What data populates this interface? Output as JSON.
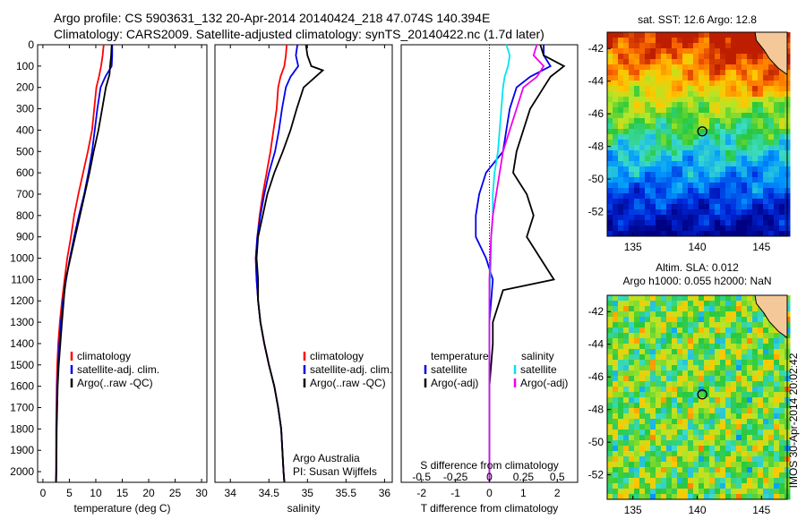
{
  "header": {
    "line1": "Argo profile: CS 5903631_132 20-Apr-2014 20140424_218 47.074S 140.394E",
    "line2": "Climatology: CARS2009. Satellite-adjusted climatology: synTS_20140422.nc (1.7d later)"
  },
  "credit": {
    "org": "Argo Australia",
    "pi": "PI: Susan Wijffels"
  },
  "side_label": "IMOS 30-Apr-2014 20:02:42",
  "colors": {
    "clim": "#ff0000",
    "sat": "#0000ee",
    "argo": "#000000",
    "sal_sat": "#00e5ee",
    "sal_argo": "#ee00ee"
  },
  "chart_data": [
    {
      "type": "line",
      "xlabel": "temperature (deg C)",
      "xlim": [
        -1,
        31
      ],
      "xticks": [
        0,
        5,
        10,
        15,
        20,
        25,
        30
      ],
      "ylim": [
        0,
        2050
      ],
      "yticks": [
        0,
        100,
        200,
        300,
        400,
        500,
        600,
        700,
        800,
        900,
        1000,
        1100,
        1200,
        1300,
        1400,
        1500,
        1600,
        1700,
        1800,
        1900,
        2000
      ],
      "legend": [
        "climatology",
        "satellite-adj. clim.",
        "Argo(..raw -QC)"
      ],
      "series": [
        {
          "key": "clim",
          "x": [
            11.5,
            11.3,
            11,
            10.6,
            10.1,
            9.7,
            9.3,
            8.5,
            7.6,
            6.7,
            5.9,
            5.3,
            4.6,
            4.1,
            3.6,
            3.2,
            2.9,
            2.7,
            2.6,
            2.5,
            2.5,
            2.45
          ],
          "y": [
            0,
            50,
            100,
            150,
            200,
            300,
            400,
            500,
            600,
            700,
            800,
            900,
            1000,
            1100,
            1200,
            1300,
            1400,
            1500,
            1600,
            1800,
            2000,
            2050
          ]
        },
        {
          "key": "sat",
          "x": [
            13.1,
            13.1,
            13,
            11.8,
            10.9,
            10.3,
            9.8,
            9.3,
            8.6,
            7.8,
            6.8,
            5.9,
            5.1,
            4.4,
            3.8,
            3.4,
            3.1,
            2.9,
            2.7,
            2.55,
            2.5,
            2.45
          ],
          "y": [
            0,
            50,
            100,
            150,
            200,
            300,
            400,
            500,
            600,
            700,
            800,
            900,
            1000,
            1100,
            1200,
            1300,
            1400,
            1500,
            1600,
            1800,
            2000,
            2050
          ]
        },
        {
          "key": "argo",
          "x": [
            13,
            12.9,
            12.7,
            12.6,
            11.9,
            11.2,
            10.5,
            9.6,
            8.8,
            7.9,
            7,
            6.1,
            5.2,
            4.3,
            4.1,
            3.6,
            3.3,
            3,
            2.8,
            2.6,
            2.55,
            2.5
          ],
          "y": [
            0,
            50,
            100,
            140,
            200,
            300,
            400,
            500,
            600,
            700,
            800,
            900,
            1000,
            1100,
            1150,
            1300,
            1400,
            1500,
            1600,
            1800,
            2000,
            2050
          ]
        }
      ]
    },
    {
      "type": "line",
      "xlabel": "salinity",
      "xlim": [
        33.8,
        36.1
      ],
      "xticks": [
        34,
        34.5,
        35,
        35.5,
        36
      ],
      "ylim": [
        0,
        2050
      ],
      "legend": [
        "climatology",
        "satellite-adj. clim.",
        "Argo(..raw -QC)"
      ],
      "series": [
        {
          "key": "clim",
          "x": [
            34.73,
            34.72,
            34.7,
            34.65,
            34.62,
            34.6,
            34.56,
            34.52,
            34.47,
            34.42,
            34.38,
            34.35,
            34.33,
            34.34,
            34.36,
            34.39,
            34.44,
            34.5,
            34.57,
            34.62,
            34.66,
            34.69,
            34.7
          ],
          "y": [
            0,
            50,
            100,
            150,
            200,
            300,
            400,
            500,
            600,
            700,
            800,
            900,
            1000,
            1100,
            1200,
            1300,
            1400,
            1500,
            1600,
            1700,
            1800,
            2000,
            2050
          ]
        },
        {
          "key": "sat",
          "x": [
            34.87,
            34.85,
            34.88,
            34.78,
            34.72,
            34.67,
            34.63,
            34.58,
            34.5,
            34.44,
            34.39,
            34.35,
            34.33,
            34.34,
            34.36,
            34.39,
            34.44,
            34.5,
            34.57,
            34.62,
            34.66,
            34.69,
            34.7
          ],
          "y": [
            0,
            50,
            100,
            150,
            200,
            300,
            400,
            500,
            600,
            700,
            800,
            900,
            1000,
            1100,
            1200,
            1300,
            1400,
            1500,
            1600,
            1700,
            1800,
            2000,
            2050
          ]
        },
        {
          "key": "argo",
          "x": [
            34.98,
            35.0,
            35.05,
            35.2,
            34.95,
            34.86,
            34.78,
            34.68,
            34.57,
            34.48,
            34.42,
            34.36,
            34.34,
            34.36,
            34.36,
            34.39,
            34.44,
            34.5,
            34.57,
            34.62,
            34.66,
            34.69,
            34.7
          ],
          "y": [
            0,
            50,
            100,
            120,
            200,
            300,
            400,
            500,
            600,
            700,
            800,
            900,
            1000,
            1100,
            1200,
            1300,
            1400,
            1500,
            1600,
            1700,
            1800,
            2000,
            2050
          ]
        }
      ]
    },
    {
      "type": "line",
      "xlabel": "T difference from climatology",
      "xlabel_top": "S difference from climatology",
      "xlim": [
        -2.6,
        2.6
      ],
      "xticks": [
        -2,
        -1,
        0,
        1,
        2
      ],
      "xticks_top": [
        "-0.5",
        "-0.25",
        "0",
        "0.25",
        "0.5"
      ],
      "ylim": [
        0,
        2050
      ],
      "legend_left": {
        "title": "temperature",
        "items": [
          "satellite",
          "Argo(-adj)"
        ]
      },
      "legend_right": {
        "title": "salinity",
        "items": [
          "satellite",
          "Argo(-adj)"
        ]
      },
      "series": [
        {
          "key": "sat",
          "x": [
            1.6,
            1.6,
            1.8,
            1.2,
            0.8,
            0.6,
            0.5,
            0.4,
            -0.1,
            -0.3,
            -0.4,
            -0.4,
            -0.1,
            0.1,
            0.05,
            0,
            0,
            0,
            0,
            0,
            0,
            0
          ],
          "y": [
            0,
            50,
            100,
            150,
            200,
            300,
            400,
            500,
            600,
            700,
            800,
            900,
            1000,
            1100,
            1200,
            1300,
            1400,
            1500,
            1600,
            1800,
            2000,
            2050
          ]
        },
        {
          "key": "argo",
          "x": [
            1.5,
            1.6,
            2.2,
            1.8,
            1.6,
            1.2,
            1,
            0.8,
            0.7,
            1.1,
            1.3,
            1.1,
            1.5,
            1.9,
            0.4,
            0.1,
            0.1,
            0.05,
            0,
            0,
            0,
            0
          ],
          "y": [
            0,
            50,
            100,
            150,
            200,
            300,
            400,
            500,
            600,
            700,
            800,
            900,
            1000,
            1100,
            1150,
            1300,
            1400,
            1500,
            1600,
            1800,
            2000,
            2050
          ]
        },
        {
          "key": "sal_sat",
          "x": [
            0.5,
            0.6,
            0.55,
            0.45,
            0.4,
            0.35,
            0.3,
            0.25,
            0.15,
            0.1,
            0.1,
            0.05,
            0.05,
            0.02,
            0,
            0,
            0,
            0,
            0,
            0,
            0,
            0
          ],
          "y": [
            0,
            50,
            100,
            150,
            200,
            300,
            400,
            500,
            600,
            700,
            800,
            900,
            1000,
            1100,
            1200,
            1300,
            1400,
            1500,
            1600,
            1700,
            2000,
            2050
          ]
        },
        {
          "key": "sal_argo",
          "x": [
            1.4,
            1.3,
            1.6,
            1.4,
            1,
            0.8,
            0.6,
            0.4,
            0.3,
            0.2,
            0.1,
            0.05,
            0.02,
            0,
            0,
            0,
            0,
            0,
            0,
            0,
            0,
            0
          ],
          "y": [
            0,
            50,
            100,
            150,
            200,
            300,
            400,
            500,
            600,
            700,
            800,
            900,
            1000,
            1100,
            1200,
            1300,
            1400,
            1500,
            1600,
            1700,
            2000,
            2050
          ]
        }
      ]
    },
    {
      "type": "heatmap",
      "title": "sat. SST: 12.6 Argo: 12.8",
      "xlim": [
        133,
        147
      ],
      "ylim": [
        -53.5,
        -41
      ],
      "xticks": [
        135,
        140,
        145
      ],
      "yticks": [
        -42,
        -44,
        -46,
        -48,
        -50,
        -52
      ],
      "marker": {
        "x": 140.394,
        "y": -47.074
      }
    },
    {
      "type": "heatmap",
      "title_line1": "Altim. SLA: 0.012",
      "title_line2": "Argo h1000: 0.055 h2000: NaN",
      "xlim": [
        133,
        147
      ],
      "ylim": [
        -53.5,
        -41
      ],
      "xticks": [
        135,
        140,
        145
      ],
      "yticks": [
        -42,
        -44,
        -46,
        -48,
        -50,
        -52
      ],
      "marker": {
        "x": 140.394,
        "y": -47.074
      }
    }
  ]
}
